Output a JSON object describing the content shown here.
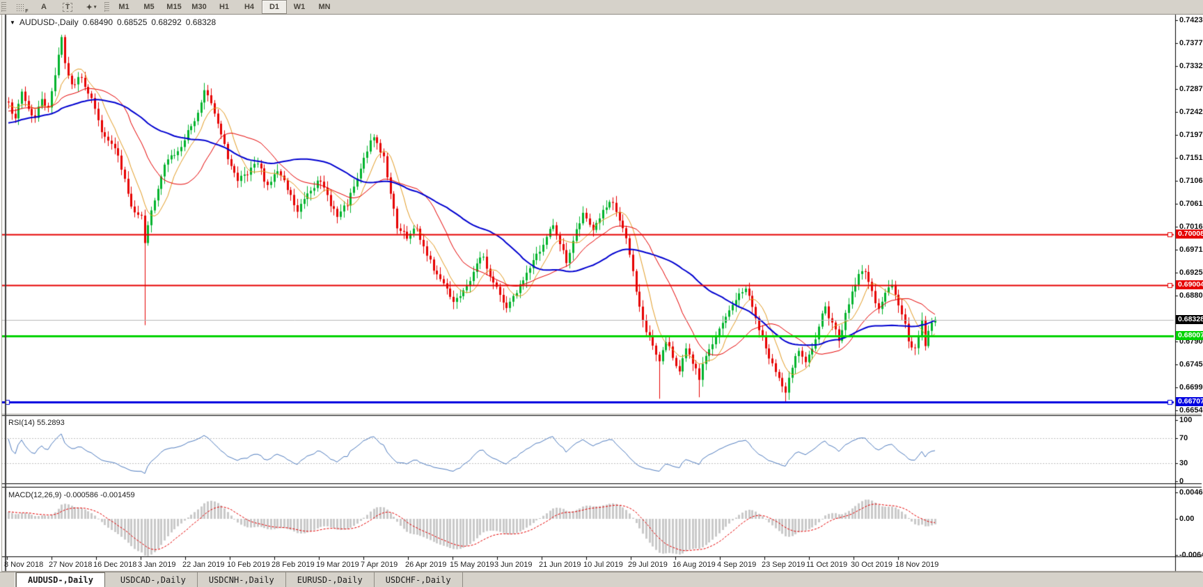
{
  "toolbar": {
    "tool_icons": [
      {
        "name": "grid-f-icon",
        "sub": "F"
      },
      {
        "name": "arrow-a-icon",
        "glyph": "A"
      },
      {
        "name": "text-tool-icon",
        "glyph": "T"
      },
      {
        "name": "crosshair-style-icon",
        "glyph": "✦",
        "caret": "▾"
      }
    ],
    "timeframes": [
      "M1",
      "M5",
      "M15",
      "M30",
      "H1",
      "H4",
      "D1",
      "W1",
      "MN"
    ],
    "active_timeframe": "D1"
  },
  "chart_header": {
    "collapse_glyph": "▼",
    "symbol": "AUDUSD-,Daily",
    "open": "0.68490",
    "high": "0.68525",
    "low": "0.68292",
    "close": "0.68328"
  },
  "price_axis": {
    "ticks": [
      "0.74230",
      "0.73770",
      "0.73320",
      "0.72870",
      "0.72420",
      "0.71970",
      "0.71510",
      "0.71060",
      "0.70610",
      "0.70160",
      "0.69710",
      "0.69250",
      "0.68800",
      "0.67900",
      "0.67450",
      "0.66990",
      "0.66540"
    ]
  },
  "levels": [
    {
      "name": "resistance-line-1",
      "label": "0.70008",
      "price": 0.70008,
      "color": "#e60000",
      "text_color": "#ffffff",
      "width": 2,
      "handles": [
        "right"
      ]
    },
    {
      "name": "resistance-line-2",
      "label": "0.69004",
      "price": 0.69004,
      "color": "#e60000",
      "text_color": "#ffffff",
      "width": 2,
      "handles": [
        "right"
      ]
    },
    {
      "name": "support-line-green",
      "label": "0.68007",
      "price": 0.68007,
      "color": "#00d300",
      "text_color": "#ffffff",
      "width": 3,
      "handles": []
    },
    {
      "name": "support-line-blue",
      "label": "0.66707",
      "price": 0.66707,
      "color": "#0000e0",
      "text_color": "#ffffff",
      "width": 3,
      "handles": [
        "left",
        "right"
      ]
    }
  ],
  "bid_marker": {
    "label": "0.68328",
    "price": 0.68328,
    "bg": "#000000",
    "text_color": "#ffffff",
    "line_color": "#b8b8b8"
  },
  "rsi_panel": {
    "name_label": "RSI(14)",
    "value": "55.2893",
    "ticks": [
      {
        "label": "100",
        "value": 100
      },
      {
        "label": "70",
        "value": 70
      },
      {
        "label": "30",
        "value": 30
      },
      {
        "label": "0",
        "value": 0
      }
    ],
    "dashed_levels": [
      70,
      30
    ],
    "line_color": "#4f7cbf"
  },
  "macd_panel": {
    "name_label": "MACD(12,26,9)",
    "values": "-0.000586 -0.001459",
    "ticks": [
      {
        "label": "0.004696",
        "value": 0.004696
      },
      {
        "label": "0.00",
        "value": 0
      },
      {
        "label": "-0.006427",
        "value": -0.006427
      }
    ],
    "histogram_color": "#c9c9c9",
    "signal_color": "#e60000"
  },
  "date_axis": {
    "labels": [
      "8 Nov 2018",
      "27 Nov 2018",
      "16 Dec 2018",
      "3 Jan 2019",
      "22 Jan 2019",
      "10 Feb 2019",
      "28 Feb 2019",
      "19 Mar 2019",
      "7 Apr 2019",
      "26 Apr 2019",
      "15 May 2019",
      "3 Jun 2019",
      "21 Jun 2019",
      "10 Jul 2019",
      "29 Jul 2019",
      "16 Aug 2019",
      "4 Sep 2019",
      "23 Sep 2019",
      "11 Oct 2019",
      "30 Oct 2019",
      "18 Nov 2019"
    ]
  },
  "tabs": [
    {
      "label": "AUDUSD-,Daily",
      "active": true
    },
    {
      "label": "USDCAD-,Daily",
      "active": false
    },
    {
      "label": "USDCNH-,Daily",
      "active": false
    },
    {
      "label": "EURUSD-,Daily",
      "active": false
    },
    {
      "label": "USDCHF-,Daily",
      "active": false
    }
  ],
  "chart_data": {
    "type": "candlestick",
    "symbol": "AUDUSD",
    "timeframe": "Daily",
    "x_range": [
      "8 Nov 2018",
      "18 Nov 2019"
    ],
    "visible_price_range": [
      0.6649,
      0.7434
    ],
    "bars_visible": 280,
    "up_color": "#00b32c",
    "down_color": "#e60000",
    "close_anchors": [
      [
        0,
        0.7262
      ],
      [
        2,
        0.7228
      ],
      [
        4,
        0.7282
      ],
      [
        6,
        0.7248
      ],
      [
        8,
        0.723
      ],
      [
        10,
        0.7268
      ],
      [
        12,
        0.725
      ],
      [
        14,
        0.7315
      ],
      [
        15,
        0.7355
      ],
      [
        16,
        0.739
      ],
      [
        17,
        0.7338
      ],
      [
        19,
        0.7295
      ],
      [
        22,
        0.731
      ],
      [
        25,
        0.727
      ],
      [
        27,
        0.7225
      ],
      [
        29,
        0.7192
      ],
      [
        32,
        0.717
      ],
      [
        34,
        0.7128
      ],
      [
        36,
        0.708
      ],
      [
        38,
        0.7045
      ],
      [
        40,
        0.7038
      ],
      [
        41,
        0.6985
      ],
      [
        42,
        0.702
      ],
      [
        44,
        0.7068
      ],
      [
        46,
        0.7115
      ],
      [
        48,
        0.7148
      ],
      [
        51,
        0.7165
      ],
      [
        54,
        0.7205
      ],
      [
        57,
        0.724
      ],
      [
        59,
        0.7286
      ],
      [
        61,
        0.7258
      ],
      [
        63,
        0.7218
      ],
      [
        66,
        0.715
      ],
      [
        69,
        0.7105
      ],
      [
        72,
        0.7118
      ],
      [
        75,
        0.714
      ],
      [
        78,
        0.7098
      ],
      [
        81,
        0.7125
      ],
      [
        84,
        0.7088
      ],
      [
        87,
        0.7045
      ],
      [
        90,
        0.7082
      ],
      [
        93,
        0.7108
      ],
      [
        96,
        0.7078
      ],
      [
        99,
        0.7035
      ],
      [
        102,
        0.7058
      ],
      [
        105,
        0.711
      ],
      [
        108,
        0.7165
      ],
      [
        110,
        0.7192
      ],
      [
        113,
        0.7155
      ],
      [
        115,
        0.708
      ],
      [
        117,
        0.7012
      ],
      [
        120,
        0.6992
      ],
      [
        123,
        0.7012
      ],
      [
        126,
        0.6958
      ],
      [
        129,
        0.6922
      ],
      [
        132,
        0.6895
      ],
      [
        134,
        0.6868
      ],
      [
        137,
        0.6892
      ],
      [
        140,
        0.6928
      ],
      [
        143,
        0.6958
      ],
      [
        145,
        0.6918
      ],
      [
        148,
        0.6882
      ],
      [
        150,
        0.6855
      ],
      [
        153,
        0.6885
      ],
      [
        156,
        0.6925
      ],
      [
        159,
        0.6962
      ],
      [
        162,
        0.6995
      ],
      [
        164,
        0.7018
      ],
      [
        166,
        0.6982
      ],
      [
        168,
        0.6945
      ],
      [
        170,
        0.6988
      ],
      [
        173,
        0.7042
      ],
      [
        176,
        0.701
      ],
      [
        179,
        0.7048
      ],
      [
        182,
        0.7062
      ],
      [
        184,
        0.7028
      ],
      [
        186,
        0.6992
      ],
      [
        188,
        0.6928
      ],
      [
        190,
        0.6858
      ],
      [
        192,
        0.6808
      ],
      [
        194,
        0.6782
      ],
      [
        196,
        0.6752
      ],
      [
        198,
        0.6788
      ],
      [
        200,
        0.6758
      ],
      [
        202,
        0.6732
      ],
      [
        204,
        0.6775
      ],
      [
        206,
        0.6745
      ],
      [
        208,
        0.6715
      ],
      [
        210,
        0.6762
      ],
      [
        213,
        0.6798
      ],
      [
        216,
        0.6838
      ],
      [
        219,
        0.6872
      ],
      [
        222,
        0.6895
      ],
      [
        224,
        0.6858
      ],
      [
        226,
        0.6812
      ],
      [
        228,
        0.6775
      ],
      [
        230,
        0.6748
      ],
      [
        232,
        0.6718
      ],
      [
        234,
        0.6688
      ],
      [
        236,
        0.6738
      ],
      [
        238,
        0.6772
      ],
      [
        240,
        0.6748
      ],
      [
        242,
        0.6775
      ],
      [
        244,
        0.6818
      ],
      [
        246,
        0.6858
      ],
      [
        248,
        0.6828
      ],
      [
        250,
        0.6792
      ],
      [
        252,
        0.6845
      ],
      [
        254,
        0.6888
      ],
      [
        256,
        0.6922
      ],
      [
        258,
        0.6928
      ],
      [
        260,
        0.6888
      ],
      [
        262,
        0.6855
      ],
      [
        264,
        0.6885
      ],
      [
        266,
        0.6902
      ],
      [
        268,
        0.6862
      ],
      [
        270,
        0.6825
      ],
      [
        271,
        0.679
      ],
      [
        273,
        0.6776
      ],
      [
        275,
        0.6832
      ],
      [
        276,
        0.678
      ],
      [
        277,
        0.6812
      ],
      [
        278,
        0.6828
      ],
      [
        279,
        0.68328
      ]
    ],
    "wick_extremes": [
      {
        "index": 16,
        "type": "high",
        "price": 0.7394
      },
      {
        "index": 41,
        "type": "low",
        "price": 0.6822
      },
      {
        "index": 196,
        "type": "low",
        "price": 0.6677
      },
      {
        "index": 208,
        "type": "low",
        "price": 0.668
      },
      {
        "index": 234,
        "type": "low",
        "price": 0.6671
      }
    ],
    "moving_averages": [
      {
        "period": 8,
        "color": "#e39b22",
        "width": 1
      },
      {
        "period": 21,
        "color": "#e60000",
        "width": 1
      },
      {
        "period": 45,
        "color": "#0000d0",
        "width": 2
      }
    ],
    "horizontal_lines": [
      0.70008,
      0.69004,
      0.68007,
      0.66707
    ],
    "current_bid": 0.68328,
    "rsi": {
      "period": 14,
      "last_value": 55.2893,
      "scale": [
        0,
        100
      ],
      "marked_levels": [
        30,
        70
      ]
    },
    "macd": {
      "fast": 12,
      "slow": 26,
      "signal": 9,
      "last_macd": -0.000586,
      "last_signal": -0.001459,
      "scale": [
        -0.006427,
        0.004696
      ]
    }
  }
}
